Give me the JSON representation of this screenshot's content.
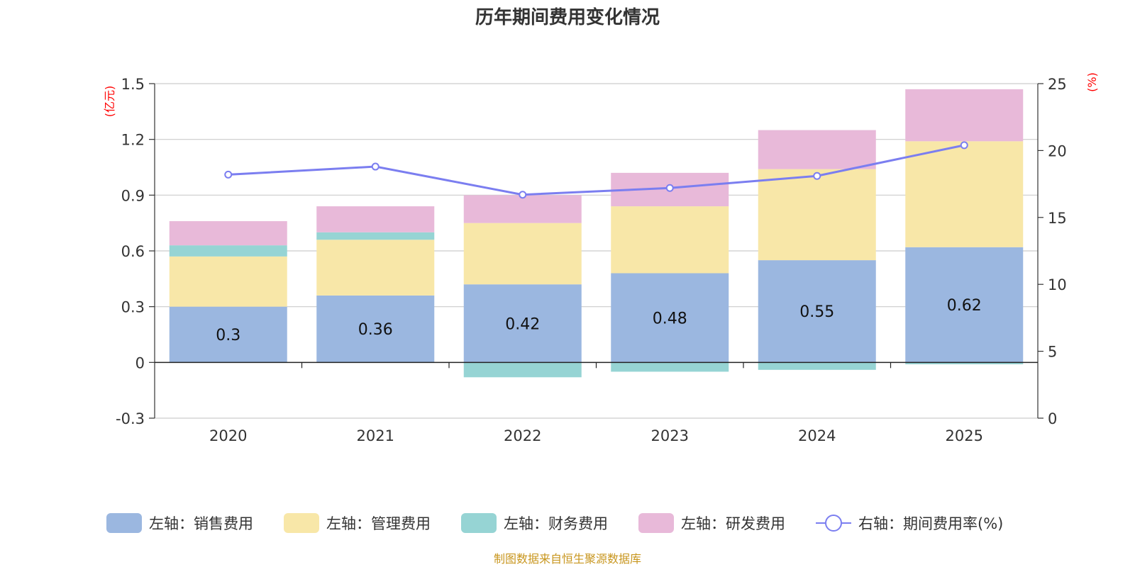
{
  "chart_data": {
    "type": "bar",
    "stacked": true,
    "title": "历年期间费用变化情况",
    "categories": [
      "2020",
      "2021",
      "2022",
      "2023",
      "2024",
      "2025"
    ],
    "left_axis": {
      "unit": "(亿元)",
      "ylim": [
        -0.3,
        1.5
      ],
      "ticks": [
        "-0.3",
        "0",
        "0.3",
        "0.6",
        "0.9",
        "1.2",
        "1.5"
      ]
    },
    "right_axis": {
      "unit": "(%)",
      "ylim": [
        0,
        25
      ],
      "ticks": [
        "0",
        "5",
        "10",
        "15",
        "20",
        "25"
      ]
    },
    "series": [
      {
        "name": "左轴：销售费用",
        "axis": "left",
        "color": "#9bb7e0",
        "values": [
          0.3,
          0.36,
          0.42,
          0.48,
          0.55,
          0.62
        ],
        "labels": [
          "0.3",
          "0.36",
          "0.42",
          "0.48",
          "0.55",
          "0.62"
        ]
      },
      {
        "name": "左轴：管理费用",
        "axis": "left",
        "color": "#f8e7a8",
        "values": [
          0.27,
          0.3,
          0.33,
          0.36,
          0.49,
          0.57
        ]
      },
      {
        "name": "左轴：财务费用",
        "axis": "left",
        "color": "#96d4d4",
        "values": [
          0.06,
          0.04,
          -0.08,
          -0.05,
          -0.04,
          -0.01
        ]
      },
      {
        "name": "左轴：研发费用",
        "axis": "left",
        "color": "#e8b9d9",
        "values": [
          0.13,
          0.14,
          0.15,
          0.18,
          0.21,
          0.28
        ]
      },
      {
        "name": "右轴：期间费用率(%)",
        "axis": "right",
        "type": "line",
        "color": "#7b7ef0",
        "values": [
          18.2,
          18.8,
          16.7,
          17.2,
          18.1,
          20.4
        ]
      }
    ],
    "legend_position": "bottom",
    "grid": true,
    "source": "制图数据来自恒生聚源数据库",
    "source_color": "#c8961e"
  }
}
